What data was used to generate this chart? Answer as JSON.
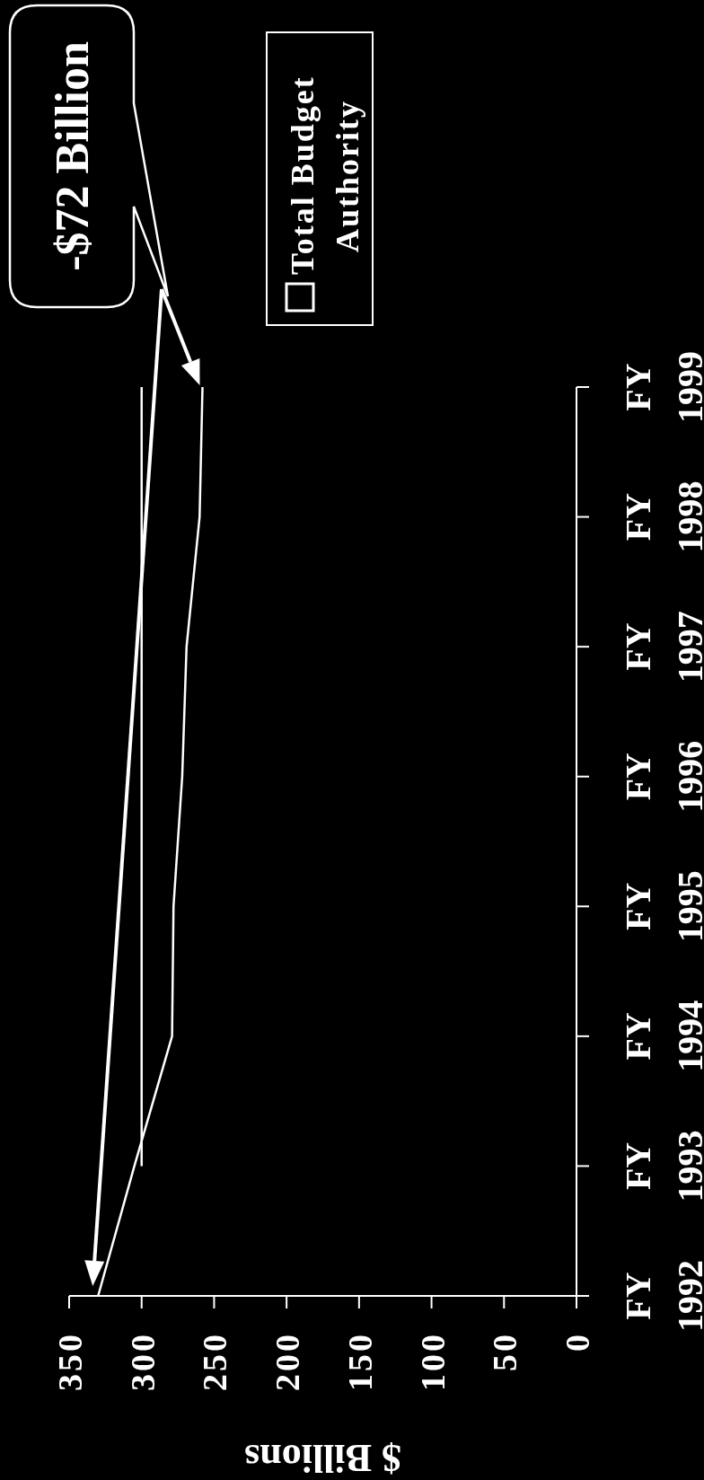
{
  "chart_data": {
    "type": "line",
    "orientation": "horizontal",
    "categories": [
      "FY 1999",
      "FY 1998",
      "FY 1997",
      "FY 1996",
      "FY 1995",
      "FY 1994",
      "FY 1993",
      "FY 1992"
    ],
    "series": [
      {
        "name": "Total Budget Authority",
        "color": "#ffffff",
        "values": [
          258,
          260,
          269,
          272,
          278,
          279,
          305,
          330
        ]
      },
      {
        "type": "line",
        "color": "#ffffff",
        "values": [
          300,
          300,
          300,
          300,
          300,
          300,
          300,
          null
        ]
      }
    ],
    "xlabel": "$ Billions",
    "xlim": [
      350,
      0
    ],
    "xticks": [
      350,
      300,
      250,
      200,
      150,
      100,
      50,
      0
    ],
    "legend": "top",
    "annotations": [
      "-$72 Billion"
    ]
  }
}
